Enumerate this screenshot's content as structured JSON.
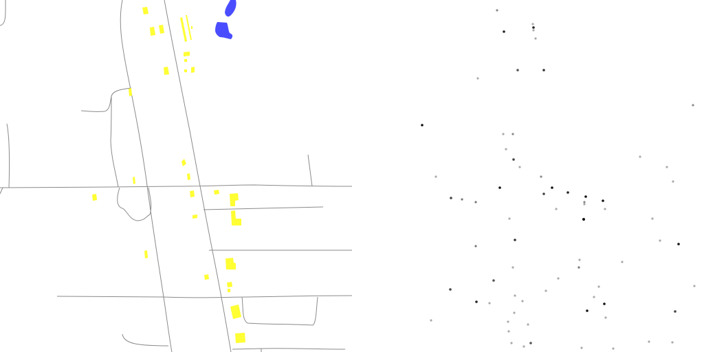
{
  "map": {
    "colors": {
      "background": "#ffffff",
      "road": "#8a8a8a",
      "building": "#ffff33",
      "water": "#4a4dff"
    },
    "layers": [
      "roads",
      "buildings",
      "water"
    ]
  },
  "points": {
    "colors": {
      "background": "#ffffff",
      "dark": "#111111",
      "medium": "#666666",
      "light": "#aaaaaa"
    }
  }
}
